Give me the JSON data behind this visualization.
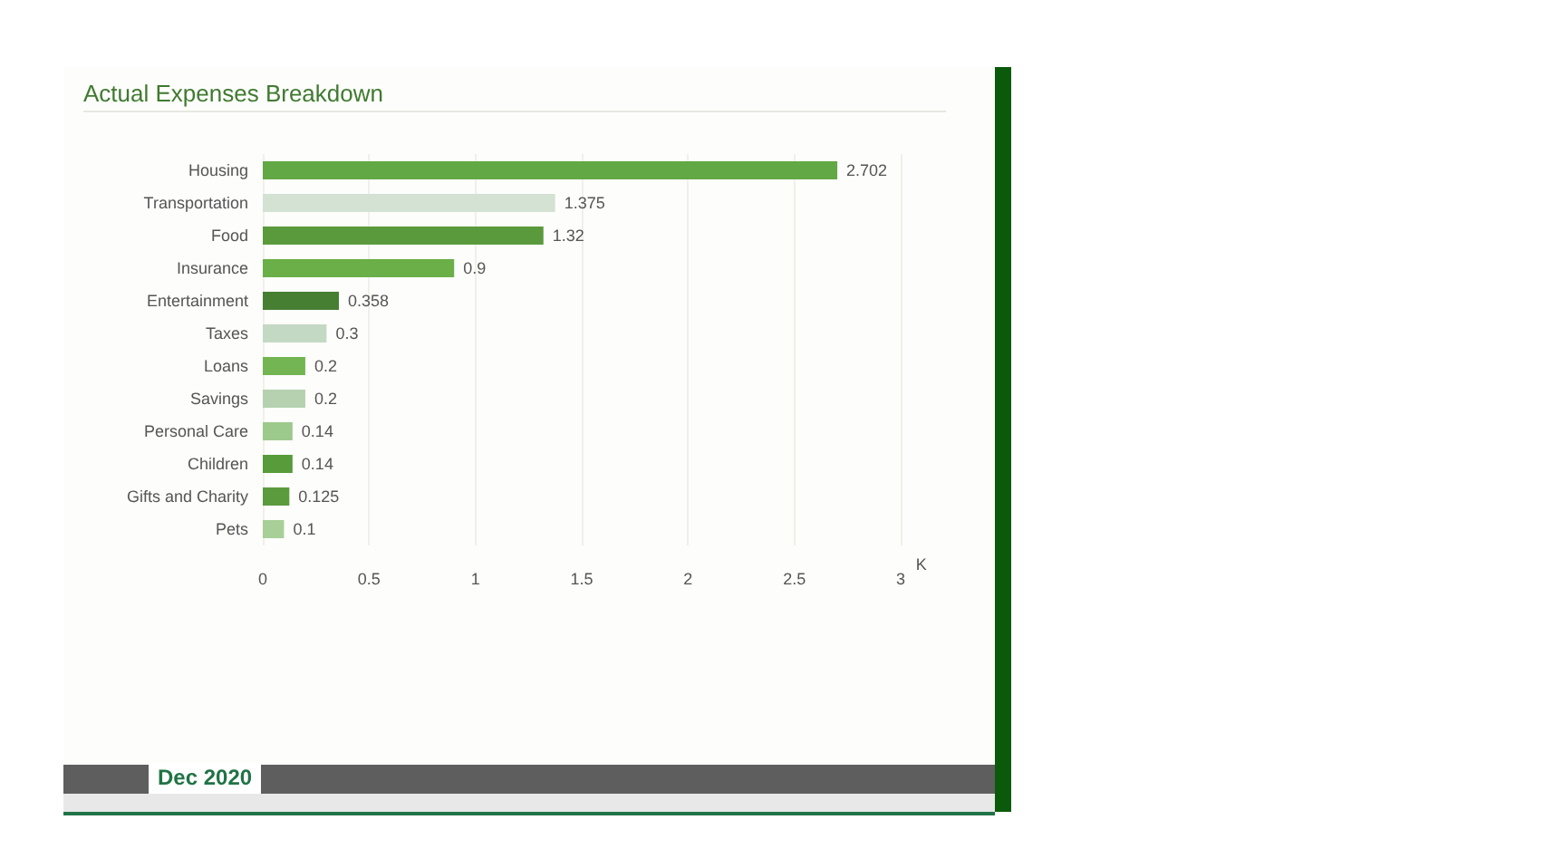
{
  "chart_data": {
    "type": "bar",
    "orientation": "horizontal",
    "title": "Actual Expenses Breakdown",
    "xlabel": "K",
    "categories": [
      "Housing",
      "Transportation",
      "Food",
      "Insurance",
      "Entertainment",
      "Taxes",
      "Loans",
      "Savings",
      "Personal Care",
      "Children",
      "Gifts and Charity",
      "Pets"
    ],
    "values": [
      2.702,
      1.375,
      1.32,
      0.9,
      0.358,
      0.3,
      0.2,
      0.2,
      0.14,
      0.14,
      0.125,
      0.1
    ],
    "colors": [
      "#62a844",
      "#d3e2d3",
      "#5a9a3c",
      "#6aaf48",
      "#467f32",
      "#c4d9c4",
      "#72b552",
      "#b5d1b0",
      "#9cc98c",
      "#579b3a",
      "#5c9a3e",
      "#a8cf98"
    ],
    "xlim": [
      0,
      3
    ],
    "xticks": [
      0,
      0.5,
      1,
      1.5,
      2,
      2.5,
      3
    ],
    "grid": "x",
    "data_labels": true,
    "annotations": [
      "Dec 2020"
    ]
  }
}
